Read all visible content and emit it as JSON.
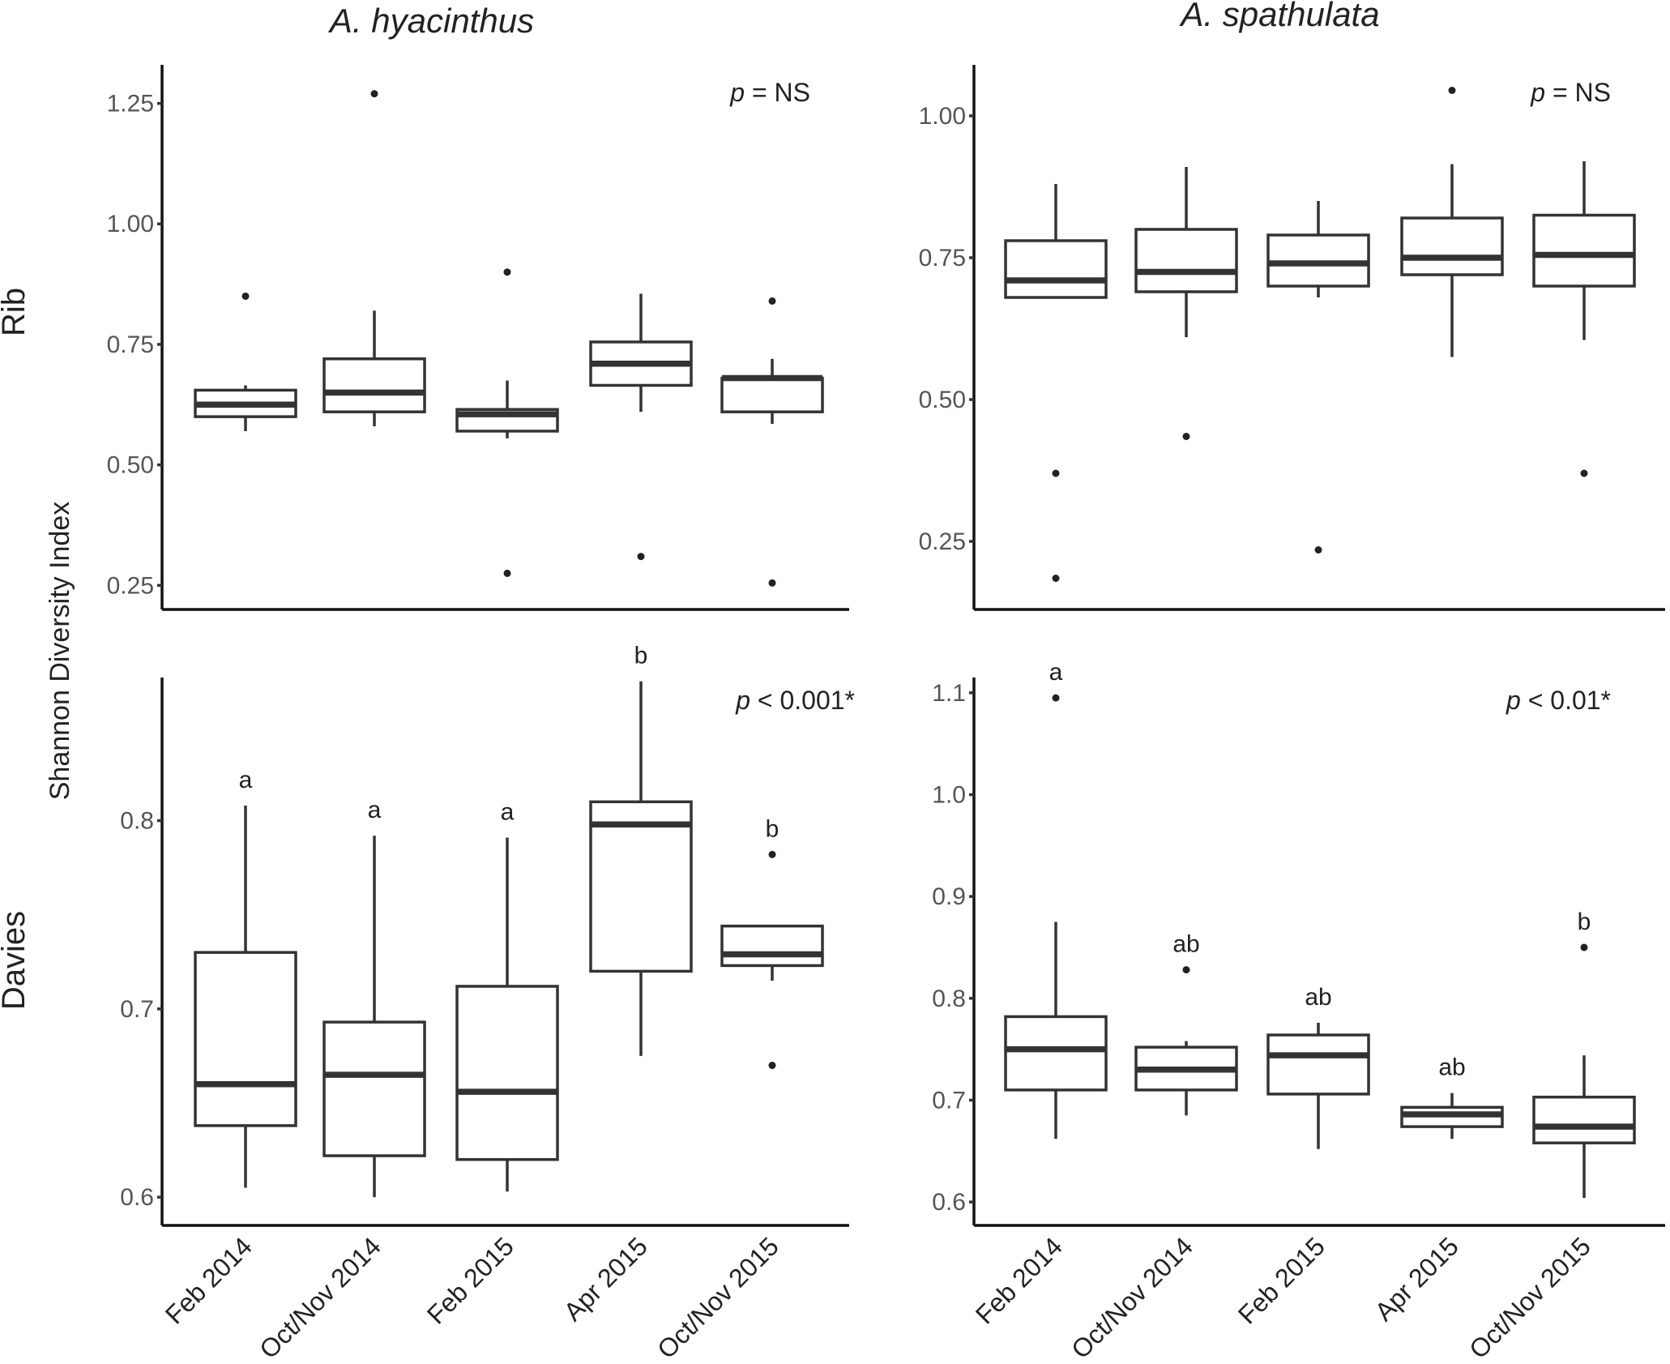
{
  "figure": {
    "y_axis_label": "Shannon Diversity Index",
    "column_titles": [
      "A. hyacinthus",
      "A. spathulata"
    ],
    "row_labels": [
      "Rib",
      "Davies"
    ],
    "x_categories": [
      "Feb 2014",
      "Oct/Nov 2014",
      "Feb 2015",
      "Apr 2015",
      "Oct/Nov 2015"
    ]
  },
  "chart_data": [
    {
      "type": "box",
      "species": "A. hyacinthus",
      "site": "Rib",
      "categories": [
        "Feb 2014",
        "Oct/Nov 2014",
        "Feb 2015",
        "Apr 2015",
        "Oct/Nov 2015"
      ],
      "ylim": [
        0.2,
        1.33
      ],
      "yticks": [
        0.25,
        0.5,
        0.75,
        1.0,
        1.25
      ],
      "ytick_labels": [
        "0.25",
        "0.50",
        "0.75",
        "1.00",
        "1.25"
      ],
      "p_prefix": "p",
      "p_text": " = NS",
      "boxes": [
        {
          "low": 0.57,
          "q1": 0.6,
          "median": 0.625,
          "q3": 0.655,
          "high": 0.665,
          "outliers": [
            0.85
          ]
        },
        {
          "low": 0.58,
          "q1": 0.61,
          "median": 0.65,
          "q3": 0.72,
          "high": 0.82,
          "outliers": [
            1.27
          ]
        },
        {
          "low": 0.555,
          "q1": 0.57,
          "median": 0.605,
          "q3": 0.615,
          "high": 0.675,
          "outliers": [
            0.9,
            0.275
          ]
        },
        {
          "low": 0.61,
          "q1": 0.665,
          "median": 0.71,
          "q3": 0.755,
          "high": 0.855,
          "outliers": [
            0.31
          ]
        },
        {
          "low": 0.585,
          "q1": 0.61,
          "median": 0.68,
          "q3": 0.68,
          "high": 0.72,
          "outliers": [
            0.84,
            0.255
          ]
        }
      ],
      "group_letters": [
        "",
        "",
        "",
        "",
        ""
      ]
    },
    {
      "type": "box",
      "species": "A. spathulata",
      "site": "Rib",
      "categories": [
        "Feb 2014",
        "Oct/Nov 2014",
        "Feb 2015",
        "Apr 2015",
        "Oct/Nov 2015"
      ],
      "ylim": [
        0.13,
        1.09
      ],
      "yticks": [
        0.25,
        0.5,
        0.75,
        1.0
      ],
      "ytick_labels": [
        "0.25",
        "0.50",
        "0.75",
        "1.00"
      ],
      "p_prefix": "p",
      "p_text": " = NS",
      "boxes": [
        {
          "low": 0.68,
          "q1": 0.68,
          "median": 0.71,
          "q3": 0.78,
          "high": 0.88,
          "outliers": [
            0.37,
            0.185
          ]
        },
        {
          "low": 0.61,
          "q1": 0.69,
          "median": 0.725,
          "q3": 0.8,
          "high": 0.91,
          "outliers": [
            0.435
          ]
        },
        {
          "low": 0.68,
          "q1": 0.7,
          "median": 0.74,
          "q3": 0.79,
          "high": 0.85,
          "outliers": [
            0.235
          ]
        },
        {
          "low": 0.575,
          "q1": 0.72,
          "median": 0.75,
          "q3": 0.82,
          "high": 0.915,
          "outliers": [
            1.045
          ]
        },
        {
          "low": 0.605,
          "q1": 0.7,
          "median": 0.755,
          "q3": 0.825,
          "high": 0.92,
          "outliers": [
            0.37
          ]
        }
      ],
      "group_letters": [
        "",
        "",
        "",
        "",
        ""
      ]
    },
    {
      "type": "box",
      "species": "A. hyacinthus",
      "site": "Davies",
      "categories": [
        "Feb 2014",
        "Oct/Nov 2014",
        "Feb 2015",
        "Apr 2015",
        "Oct/Nov 2015"
      ],
      "ylim": [
        0.585,
        0.876
      ],
      "yticks": [
        0.6,
        0.7,
        0.8
      ],
      "ytick_labels": [
        "0.6",
        "0.7",
        "0.8"
      ],
      "p_prefix": "p",
      "p_text": " < 0.001*",
      "boxes": [
        {
          "low": 0.605,
          "q1": 0.638,
          "median": 0.66,
          "q3": 0.73,
          "high": 0.808,
          "outliers": []
        },
        {
          "low": 0.6,
          "q1": 0.622,
          "median": 0.665,
          "q3": 0.693,
          "high": 0.792,
          "outliers": []
        },
        {
          "low": 0.603,
          "q1": 0.62,
          "median": 0.656,
          "q3": 0.712,
          "high": 0.791,
          "outliers": []
        },
        {
          "low": 0.675,
          "q1": 0.72,
          "median": 0.798,
          "q3": 0.81,
          "high": 0.874,
          "outliers": []
        },
        {
          "low": 0.715,
          "q1": 0.723,
          "median": 0.729,
          "q3": 0.744,
          "high": 0.744,
          "outliers": [
            0.782,
            0.67
          ]
        }
      ],
      "group_letters": [
        "a",
        "a",
        "a",
        "b",
        "b"
      ]
    },
    {
      "type": "box",
      "species": "A. spathulata",
      "site": "Davies",
      "categories": [
        "Feb 2014",
        "Oct/Nov 2014",
        "Feb 2015",
        "Apr 2015",
        "Oct/Nov 2015"
      ],
      "ylim": [
        0.577,
        1.115
      ],
      "yticks": [
        0.6,
        0.7,
        0.8,
        0.9,
        1.0,
        1.1
      ],
      "ytick_labels": [
        "0.6",
        "0.7",
        "0.8",
        "0.9",
        "1.0",
        "1.1"
      ],
      "p_prefix": "p",
      "p_text": " < 0.01*",
      "boxes": [
        {
          "low": 0.662,
          "q1": 0.71,
          "median": 0.75,
          "q3": 0.782,
          "high": 0.875,
          "outliers": [
            1.095
          ]
        },
        {
          "low": 0.685,
          "q1": 0.71,
          "median": 0.73,
          "q3": 0.752,
          "high": 0.758,
          "outliers": [
            0.828
          ]
        },
        {
          "low": 0.652,
          "q1": 0.706,
          "median": 0.744,
          "q3": 0.764,
          "high": 0.776,
          "outliers": []
        },
        {
          "low": 0.662,
          "q1": 0.674,
          "median": 0.686,
          "q3": 0.693,
          "high": 0.707,
          "outliers": []
        },
        {
          "low": 0.604,
          "q1": 0.658,
          "median": 0.674,
          "q3": 0.703,
          "high": 0.744,
          "outliers": [
            0.85
          ]
        }
      ],
      "group_letters": [
        "a",
        "ab",
        "ab",
        "ab",
        "b"
      ]
    }
  ]
}
